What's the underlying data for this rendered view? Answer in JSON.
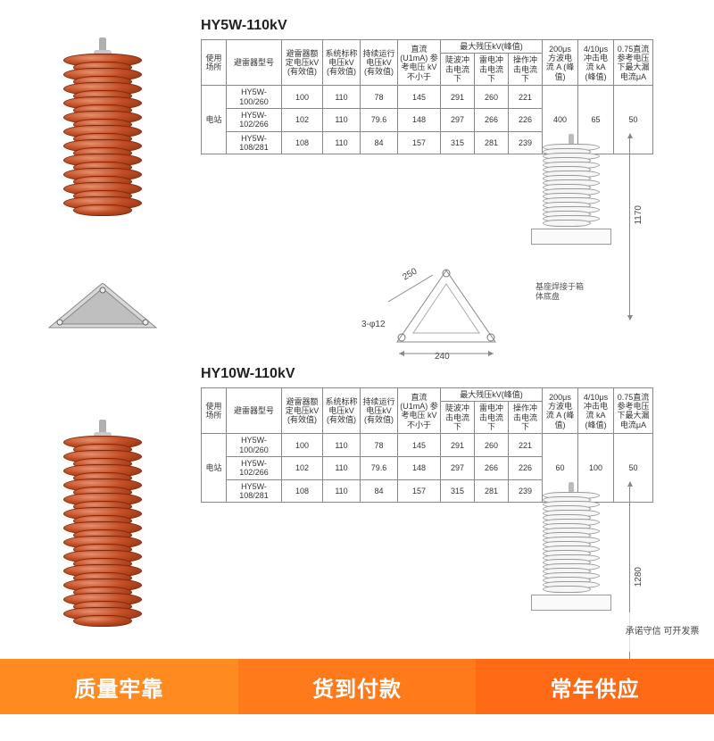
{
  "promo": {
    "slot1": "质量牢靠",
    "slot2": "货到付款",
    "slot3": "常年供应",
    "badge": "承诺守信\n可开发票"
  },
  "products": [
    {
      "title": "HY5W-110kV",
      "arrester": {
        "shed_color_outer": "#8a2e10",
        "shed_color_mid": "#c24e25",
        "shed_color_hi": "#e6906f",
        "shed_count_big": 11,
        "shed_count_small": 11,
        "has_tri_base": true
      },
      "dimensions": {
        "height": "1170",
        "base_side": "250",
        "base_width": "240",
        "hole": "12",
        "holes": "3",
        "note": "基座焊接于箱体底盘"
      },
      "table": {
        "headers": {
          "use": "使用场所",
          "model": "避雷器型号",
          "rated": "避雷器额定电压kV (有效值)",
          "system": "系统标称电压kV (有效值)",
          "mcov": "持续运行电压kV (有效值)",
          "dc1ma": "直流 (U1mA) 参考电压 kV不小于",
          "resid_grp": "最大残压kV(峰值)",
          "steep": "陡波冲击电流下",
          "lightning": "雷电冲击电流下",
          "switching": "操作冲击电流下",
          "sq200": "200μs 方波电流 A (峰值)",
          "i410": "4/10μs 冲击电流 kA (峰值)",
          "leak": "0.75直流参考电压下最大漏电流μA"
        },
        "use_value": "电站",
        "rows": [
          {
            "model": "HY5W-100/260",
            "rated": "100",
            "system": "110",
            "mcov": "78",
            "dc1ma": "145",
            "steep": "291",
            "lightning": "260",
            "switching": "221"
          },
          {
            "model": "HY5W-102/266",
            "rated": "102",
            "system": "110",
            "mcov": "79.6",
            "dc1ma": "148",
            "steep": "297",
            "lightning": "266",
            "switching": "226"
          },
          {
            "model": "HY5W-108/281",
            "rated": "108",
            "system": "110",
            "mcov": "84",
            "dc1ma": "157",
            "steep": "315",
            "lightning": "281",
            "switching": "239"
          }
        ],
        "sq200": "400",
        "i410": "65",
        "leak": "50"
      }
    },
    {
      "title": "HY10W-110kV",
      "arrester": {
        "shed_color_outer": "#8a2e10",
        "shed_color_mid": "#c24e25",
        "shed_color_hi": "#e6906f",
        "shed_count_big": 13,
        "shed_count_small": 13,
        "has_tri_base": false
      },
      "dimensions": {
        "height": "1280",
        "base_side": "",
        "base_width": "",
        "hole": "",
        "holes": "",
        "note": ""
      },
      "table": {
        "headers": {
          "use": "使用场所",
          "model": "避雷器型号",
          "rated": "避雷器额定电压kV (有效值)",
          "system": "系统标称电压kV (有效值)",
          "mcov": "持续运行电压kV (有效值)",
          "dc1ma": "直流 (U1mA) 参考电压 kV不小于",
          "resid_grp": "最大残压kV(峰值)",
          "steep": "陡波冲击电流下",
          "lightning": "雷电冲击电流下",
          "switching": "操作冲击电流下",
          "sq200": "200μs 方波电流 A (峰值)",
          "i410": "4/10μs 冲击电流 kA (峰值)",
          "leak": "0.75直流参考电压下最大漏电流μA"
        },
        "use_value": "电站",
        "rows": [
          {
            "model": "HY5W-100/260",
            "rated": "100",
            "system": "110",
            "mcov": "78",
            "dc1ma": "145",
            "steep": "291",
            "lightning": "260",
            "switching": "221"
          },
          {
            "model": "HY5W-102/266",
            "rated": "102",
            "system": "110",
            "mcov": "79.6",
            "dc1ma": "148",
            "steep": "297",
            "lightning": "266",
            "switching": "226"
          },
          {
            "model": "HY5W-108/281",
            "rated": "108",
            "system": "110",
            "mcov": "84",
            "dc1ma": "157",
            "steep": "315",
            "lightning": "281",
            "switching": "239"
          }
        ],
        "sq200": "60",
        "i410": "100",
        "leak": "50"
      }
    }
  ]
}
